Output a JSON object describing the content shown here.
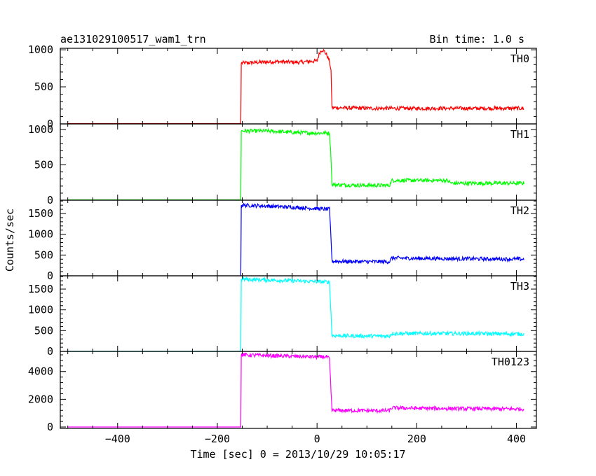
{
  "header": {
    "title": "ae131029100517_wam1_trn",
    "bin_time": "Bin time: 1.0 s"
  },
  "chart_data": {
    "type": "line",
    "xlabel": "Time [sec] 0 = 2013/10/29 10:05:17",
    "ylabel": "Counts/sec",
    "xlim": [
      -515,
      440
    ],
    "x_ticks": [
      -400,
      -200,
      0,
      200,
      400
    ],
    "panels": [
      {
        "name": "TH0",
        "color": "#ff0000",
        "ylim": [
          0,
          1020
        ],
        "y_ticks": [
          0,
          500,
          1000
        ],
        "x": [
          -500,
          -153,
          -152,
          -120,
          -80,
          -40,
          0,
          5,
          10,
          15,
          20,
          25,
          28,
          30,
          100,
          200,
          300,
          415
        ],
        "y": [
          5,
          5,
          820,
          830,
          840,
          830,
          850,
          960,
          1000,
          980,
          920,
          850,
          700,
          220,
          210,
          210,
          210,
          210
        ]
      },
      {
        "name": "TH1",
        "color": "#00ff00",
        "ylim": [
          0,
          1080
        ],
        "y_ticks": [
          0,
          500,
          1000
        ],
        "x": [
          -500,
          -153,
          -152,
          -100,
          -50,
          0,
          25,
          28,
          30,
          100,
          145,
          150,
          200,
          260,
          270,
          350,
          415
        ],
        "y": [
          5,
          5,
          980,
          980,
          960,
          950,
          950,
          600,
          220,
          210,
          210,
          280,
          280,
          280,
          240,
          240,
          240
        ]
      },
      {
        "name": "TH2",
        "color": "#0000ff",
        "ylim": [
          0,
          1820
        ],
        "y_ticks": [
          0,
          500,
          1000,
          1500
        ],
        "x": [
          -500,
          -153,
          -152,
          -100,
          -50,
          0,
          25,
          28,
          30,
          100,
          145,
          150,
          200,
          300,
          415
        ],
        "y": [
          -20,
          -20,
          1700,
          1680,
          1650,
          1620,
          1600,
          900,
          350,
          340,
          340,
          430,
          420,
          410,
          400
        ]
      },
      {
        "name": "TH3",
        "color": "#00ffff",
        "ylim": [
          0,
          1820
        ],
        "y_ticks": [
          0,
          500,
          1000,
          1500
        ],
        "x": [
          -500,
          -153,
          -152,
          -100,
          -50,
          0,
          25,
          28,
          30,
          100,
          145,
          150,
          200,
          300,
          415
        ],
        "y": [
          5,
          5,
          1740,
          1720,
          1700,
          1680,
          1670,
          900,
          380,
          370,
          370,
          430,
          430,
          430,
          420
        ]
      },
      {
        "name": "TH0123",
        "color": "#ff00ff",
        "ylim": [
          -100,
          5450
        ],
        "y_ticks": [
          0,
          2000,
          4000
        ],
        "x": [
          -500,
          -153,
          -152,
          -100,
          -50,
          0,
          20,
          25,
          28,
          30,
          100,
          145,
          150,
          200,
          300,
          415
        ],
        "y": [
          0,
          0,
          5200,
          5150,
          5100,
          5050,
          5050,
          4900,
          2500,
          1200,
          1180,
          1180,
          1380,
          1350,
          1320,
          1300
        ]
      }
    ]
  }
}
